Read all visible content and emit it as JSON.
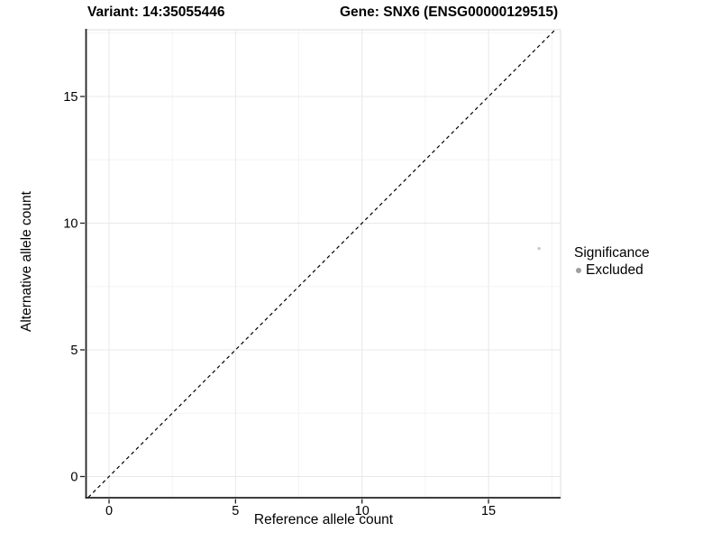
{
  "header": {
    "variant_title": "Variant: 14:35055446",
    "gene_title": "Gene: SNX6 (ENSG00000129515)"
  },
  "legend": {
    "title": "Significance",
    "items": [
      {
        "label": "Excluded",
        "color": "#9e9e9e"
      }
    ]
  },
  "chart_data": {
    "type": "scatter",
    "title": "Variant: 14:35055446",
    "title2": "Gene: SNX6 (ENSG00000129515)",
    "xlabel": "Reference allele count",
    "ylabel": "Alternative allele count",
    "xlim": [
      -0.9,
      17.85
    ],
    "ylim": [
      -0.9,
      17.6
    ],
    "xticks": [
      0,
      5,
      10,
      15
    ],
    "yticks": [
      0,
      5,
      10,
      15
    ],
    "minor_ticks": [
      2.5,
      7.5,
      12.5,
      17.5
    ],
    "grid": true,
    "legend_position": "right",
    "series": [
      {
        "name": "Excluded",
        "color": "#c4c4c4",
        "points": [
          {
            "x": 17,
            "y": 9
          }
        ]
      }
    ],
    "identity_line": {
      "style": "dashed",
      "slope": 1,
      "intercept": 0,
      "color": "#000000"
    },
    "colors": {
      "axis_line": "#222222",
      "panel_border": "#dcdcdc",
      "grid_major": "#e8e8e8",
      "grid_minor": "#f3f3f3",
      "text": "#000000"
    }
  }
}
